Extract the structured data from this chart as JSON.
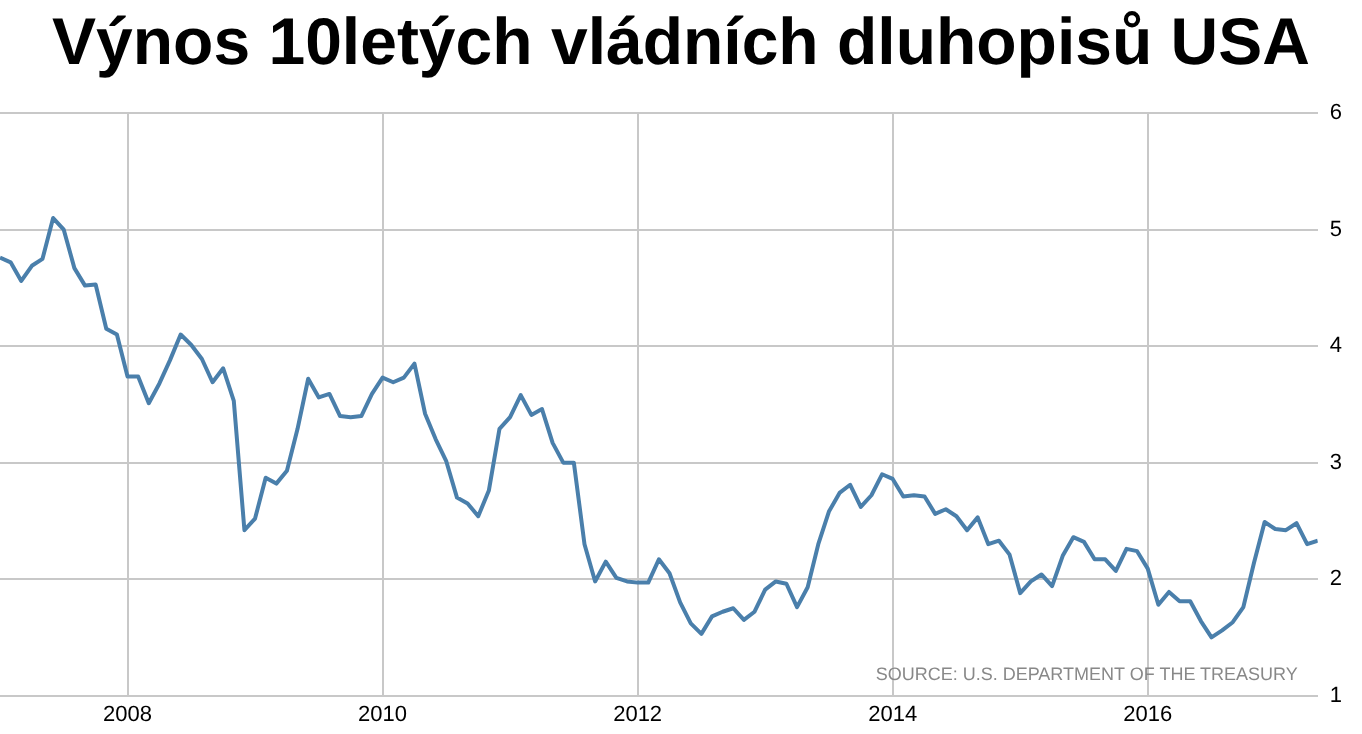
{
  "chart_data": {
    "type": "line",
    "title": "Výnos 10letých vládních dluhopisů USA",
    "annotations": [
      "SOURCE: U.S. DEPARTMENT OF THE TREASURY"
    ],
    "x": [
      "2007-01",
      "2007-02",
      "2007-03",
      "2007-04",
      "2007-05",
      "2007-06",
      "2007-07",
      "2007-08",
      "2007-09",
      "2007-10",
      "2007-11",
      "2007-12",
      "2008-01",
      "2008-02",
      "2008-03",
      "2008-04",
      "2008-05",
      "2008-06",
      "2008-07",
      "2008-08",
      "2008-09",
      "2008-10",
      "2008-11",
      "2008-12",
      "2009-01",
      "2009-02",
      "2009-03",
      "2009-04",
      "2009-05",
      "2009-06",
      "2009-07",
      "2009-08",
      "2009-09",
      "2009-10",
      "2009-11",
      "2009-12",
      "2010-01",
      "2010-02",
      "2010-03",
      "2010-04",
      "2010-05",
      "2010-06",
      "2010-07",
      "2010-08",
      "2010-09",
      "2010-10",
      "2010-11",
      "2010-12",
      "2011-01",
      "2011-02",
      "2011-03",
      "2011-04",
      "2011-05",
      "2011-06",
      "2011-07",
      "2011-08",
      "2011-09",
      "2011-10",
      "2011-11",
      "2011-12",
      "2012-01",
      "2012-02",
      "2012-03",
      "2012-04",
      "2012-05",
      "2012-06",
      "2012-07",
      "2012-08",
      "2012-09",
      "2012-10",
      "2012-11",
      "2012-12",
      "2013-01",
      "2013-02",
      "2013-03",
      "2013-04",
      "2013-05",
      "2013-06",
      "2013-07",
      "2013-08",
      "2013-09",
      "2013-10",
      "2013-11",
      "2013-12",
      "2014-01",
      "2014-02",
      "2014-03",
      "2014-04",
      "2014-05",
      "2014-06",
      "2014-07",
      "2014-08",
      "2014-09",
      "2014-10",
      "2014-11",
      "2014-12",
      "2015-01",
      "2015-02",
      "2015-03",
      "2015-04",
      "2015-05",
      "2015-06",
      "2015-07",
      "2015-08",
      "2015-09",
      "2015-10",
      "2015-11",
      "2015-12",
      "2016-01",
      "2016-02",
      "2016-03",
      "2016-04",
      "2016-05",
      "2016-06",
      "2016-07",
      "2016-08",
      "2016-09",
      "2016-10",
      "2016-11",
      "2016-12",
      "2017-01",
      "2017-02",
      "2017-03",
      "2017-04",
      "2017-05"
    ],
    "series": [
      {
        "color": "#4a7fab",
        "values": [
          4.76,
          4.72,
          4.56,
          4.69,
          4.75,
          5.1,
          5.0,
          4.67,
          4.52,
          4.53,
          4.15,
          4.1,
          3.74,
          3.74,
          3.51,
          3.68,
          3.88,
          4.1,
          4.01,
          3.89,
          3.69,
          3.81,
          3.53,
          2.42,
          2.52,
          2.87,
          2.82,
          2.93,
          3.29,
          3.72,
          3.56,
          3.59,
          3.4,
          3.39,
          3.4,
          3.59,
          3.73,
          3.69,
          3.73,
          3.85,
          3.42,
          3.2,
          3.01,
          2.7,
          2.65,
          2.54,
          2.76,
          3.29,
          3.39,
          3.58,
          3.41,
          3.46,
          3.17,
          3.0,
          3.0,
          2.3,
          1.98,
          2.15,
          2.01,
          1.98,
          1.97,
          1.97,
          2.17,
          2.05,
          1.8,
          1.62,
          1.53,
          1.68,
          1.72,
          1.75,
          1.65,
          1.72,
          1.91,
          1.98,
          1.96,
          1.76,
          1.93,
          2.3,
          2.58,
          2.74,
          2.81,
          2.62,
          2.72,
          2.9,
          2.86,
          2.71,
          2.72,
          2.71,
          2.56,
          2.6,
          2.54,
          2.42,
          2.53,
          2.3,
          2.33,
          2.21,
          1.88,
          1.98,
          2.04,
          1.94,
          2.2,
          2.36,
          2.32,
          2.17,
          2.17,
          2.07,
          2.26,
          2.24,
          2.09,
          1.78,
          1.89,
          1.81,
          1.81,
          1.64,
          1.5,
          1.56,
          1.63,
          1.76,
          2.14,
          2.49,
          2.43,
          2.42,
          2.48,
          2.3,
          2.33
        ]
      }
    ],
    "xlim": [
      "2007-01",
      "2017-05"
    ],
    "xticks": [
      {
        "value": "2008",
        "label": "2008"
      },
      {
        "value": "2010",
        "label": "2010"
      },
      {
        "value": "2012",
        "label": "2012"
      },
      {
        "value": "2014",
        "label": "2014"
      },
      {
        "value": "2016",
        "label": "2016"
      }
    ],
    "ylim": [
      1,
      6
    ],
    "yticks": [
      1,
      2,
      3,
      4,
      5,
      6
    ],
    "grid": true,
    "legend": false,
    "marker": "none",
    "line_style": "solid"
  }
}
